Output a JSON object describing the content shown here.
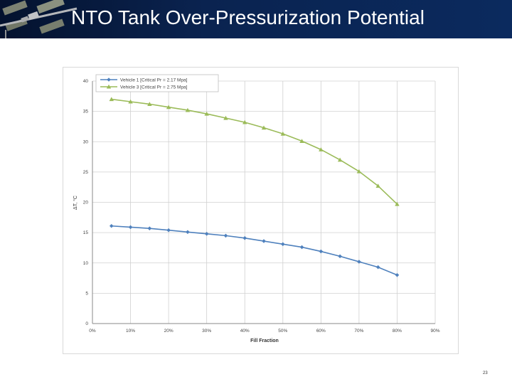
{
  "slide": {
    "title": "NTO Tank Over-Pressurization Potential",
    "page_number": "23"
  },
  "chart_data": {
    "type": "line",
    "title": "",
    "xlabel": "Fill Fraction",
    "ylabel": "ΔT, °C",
    "xlim": [
      0,
      90
    ],
    "ylim": [
      0,
      40
    ],
    "x_ticks": [
      0,
      10,
      20,
      30,
      40,
      50,
      60,
      70,
      80,
      90
    ],
    "x_tick_labels": [
      "0%",
      "10%",
      "20%",
      "30%",
      "40%",
      "50%",
      "60%",
      "70%",
      "80%",
      "90%"
    ],
    "y_ticks": [
      0,
      5,
      10,
      15,
      20,
      25,
      30,
      35,
      40
    ],
    "y_tick_labels": [
      "0",
      "5",
      "10",
      "15",
      "20",
      "25",
      "30",
      "35",
      "40"
    ],
    "grid": true,
    "legend_position": "top-left",
    "x": [
      5,
      10,
      15,
      20,
      25,
      30,
      35,
      40,
      45,
      50,
      55,
      60,
      65,
      70,
      75,
      80
    ],
    "series": [
      {
        "name": "Vehicle 1 [Critical Pr = 2.17 Mpa]",
        "color": "#4f81bd",
        "marker": "diamond",
        "values": [
          16.1,
          15.9,
          15.7,
          15.4,
          15.1,
          14.8,
          14.5,
          14.1,
          13.6,
          13.1,
          12.6,
          11.9,
          11.1,
          10.2,
          9.3,
          8.0
        ]
      },
      {
        "name": "Vehicle 3 [Critical Pr = 2.75 Mpa]",
        "color": "#9bbb59",
        "marker": "triangle",
        "values": [
          37.0,
          36.6,
          36.2,
          35.7,
          35.2,
          34.6,
          33.9,
          33.2,
          32.3,
          31.3,
          30.1,
          28.7,
          27.0,
          25.1,
          22.7,
          19.7
        ]
      }
    ]
  }
}
